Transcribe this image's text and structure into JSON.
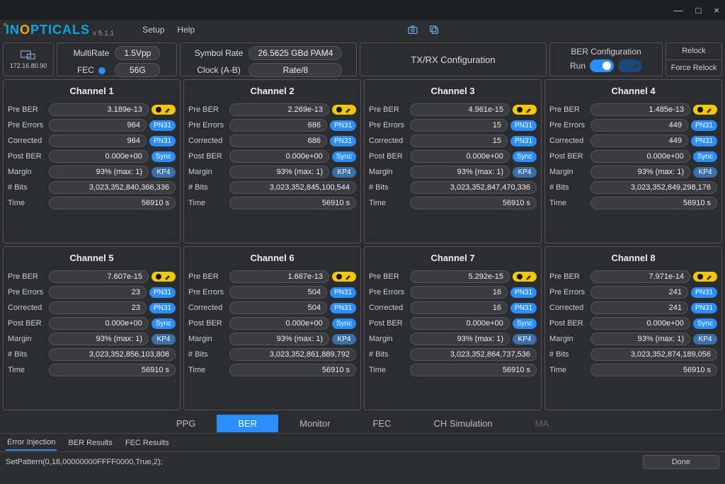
{
  "titlebar": {
    "min": "—",
    "max": "□",
    "close": "×"
  },
  "brand": {
    "in": "IN",
    "o": "O",
    "rest": "PTICALS",
    "version": "v 5.1.1"
  },
  "menu": {
    "setup": "Setup",
    "help": "Help"
  },
  "ip": "172.16.80.90",
  "cfg": {
    "multirate": "MultiRate",
    "vpp": "1.5Vpp",
    "fec": "FEC",
    "rate": "56G",
    "symrate_lbl": "Symbol Rate",
    "symrate": "26.5625 GBd PAM4",
    "clock_lbl": "Clock (A-B)",
    "clock": "Rate/8",
    "txrx": "TX/RX Configuration",
    "ber_title": "BER Configuration",
    "run": "Run",
    "relock": "Relock",
    "frelock": "Force Relock"
  },
  "row_labels": {
    "preber": "Pre BER",
    "preerr": "Pre Errors",
    "corrected": "Corrected",
    "postber": "Post BER",
    "margin": "Margin",
    "bits": "# Bits",
    "time": "Time"
  },
  "badges": {
    "pn31": "PN31",
    "sync": "Sync",
    "kp4": "KP4"
  },
  "channels": [
    {
      "title": "Channel 1",
      "preber": "3.189e-13",
      "preerr": "964",
      "corrected": "964",
      "postber": "0.000e+00",
      "margin": "93% (max: 1)",
      "bits": "3,023,352,840,366,336",
      "time": "56910 s"
    },
    {
      "title": "Channel 2",
      "preber": "2.269e-13",
      "preerr": "686",
      "corrected": "686",
      "postber": "0.000e+00",
      "margin": "93% (max: 1)",
      "bits": "3,023,352,845,100,544",
      "time": "56910 s"
    },
    {
      "title": "Channel 3",
      "preber": "4.961e-15",
      "preerr": "15",
      "corrected": "15",
      "postber": "0.000e+00",
      "margin": "93% (max: 1)",
      "bits": "3,023,352,847,470,336",
      "time": "56910 s"
    },
    {
      "title": "Channel 4",
      "preber": "1.485e-13",
      "preerr": "449",
      "corrected": "449",
      "postber": "0.000e+00",
      "margin": "93% (max: 1)",
      "bits": "3,023,352,849,298,176",
      "time": "56910 s"
    },
    {
      "title": "Channel 5",
      "preber": "7.607e-15",
      "preerr": "23",
      "corrected": "23",
      "postber": "0.000e+00",
      "margin": "93% (max: 1)",
      "bits": "3,023,352,856,103,808",
      "time": "56910 s"
    },
    {
      "title": "Channel 6",
      "preber": "1.667e-13",
      "preerr": "504",
      "corrected": "504",
      "postber": "0.000e+00",
      "margin": "93% (max: 1)",
      "bits": "3,023,352,861,889,792",
      "time": "56910 s"
    },
    {
      "title": "Channel 7",
      "preber": "5.292e-15",
      "preerr": "16",
      "corrected": "16",
      "postber": "0.000e+00",
      "margin": "93% (max: 1)",
      "bits": "3,023,352,864,737,536",
      "time": "56910 s"
    },
    {
      "title": "Channel 8",
      "preber": "7.971e-14",
      "preerr": "241",
      "corrected": "241",
      "postber": "0.000e+00",
      "margin": "93% (max: 1)",
      "bits": "3,023,352,874,189,056",
      "time": "56910 s"
    }
  ],
  "tabs": {
    "ppg": "PPG",
    "ber": "BER",
    "monitor": "Monitor",
    "fec": "FEC",
    "chsim": "CH Simulation",
    "ma": "MA"
  },
  "subtabs": {
    "ei": "Error Injection",
    "br": "BER Results",
    "fr": "FEC Results"
  },
  "status": {
    "cmd": "SetPattern(0,18,00000000FFFF0000,True,2);",
    "done": "Done"
  },
  "colors": {
    "accent": "#2b8eff",
    "yellow": "#f2c800",
    "bg": "#2b2d30",
    "border": "#555"
  }
}
